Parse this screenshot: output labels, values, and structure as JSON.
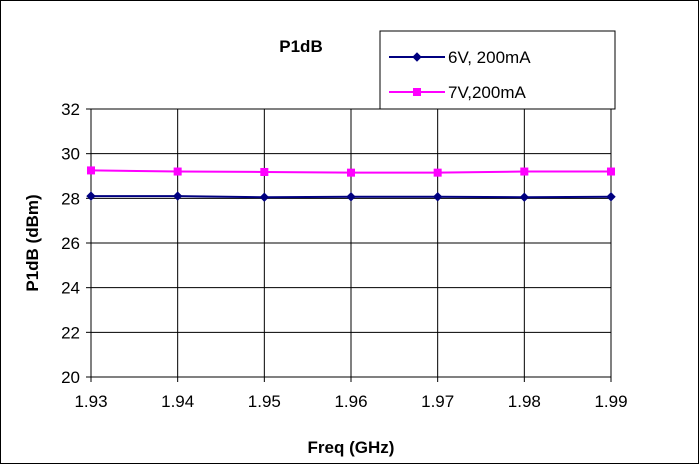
{
  "chart_data": {
    "type": "line",
    "title": "P1dB",
    "xlabel": "Freq (GHz)",
    "ylabel": "P1dB (dBm)",
    "x": [
      1.93,
      1.94,
      1.95,
      1.96,
      1.97,
      1.98,
      1.99
    ],
    "x_tick_labels": [
      "1.93",
      "1.94",
      "1.95",
      "1.96",
      "1.97",
      "1.98",
      "1.99"
    ],
    "ylim": [
      20,
      32
    ],
    "y_ticks": [
      20,
      22,
      24,
      26,
      28,
      30,
      32
    ],
    "grid": true,
    "legend_position": "top-right",
    "series": [
      {
        "name": "6V, 200mA",
        "color": "#000080",
        "marker": "diamond",
        "values": [
          28.1,
          28.1,
          28.05,
          28.07,
          28.07,
          28.05,
          28.07
        ]
      },
      {
        "name": "7V,200mA",
        "color": "#FF00FF",
        "marker": "square",
        "values": [
          29.25,
          29.2,
          29.18,
          29.15,
          29.15,
          29.2,
          29.2
        ]
      }
    ]
  }
}
